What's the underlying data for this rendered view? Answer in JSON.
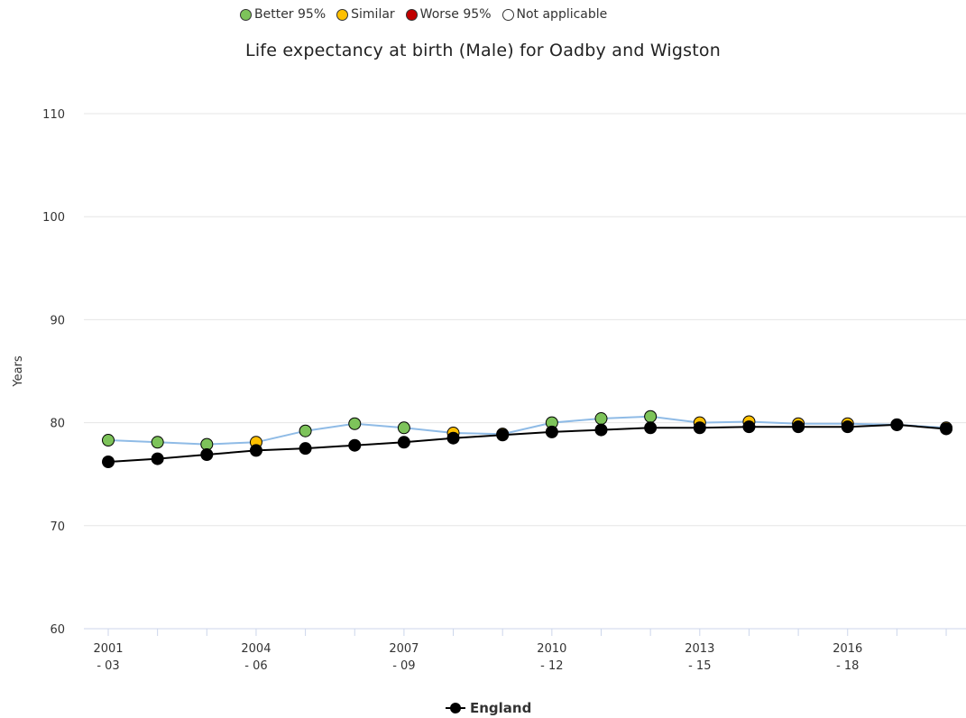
{
  "legend_top": [
    {
      "label": "Better 95%",
      "color": "#7dc35a"
    },
    {
      "label": "Similar",
      "color": "#ffc000"
    },
    {
      "label": "Worse 95%",
      "color": "#c00000"
    },
    {
      "label": "Not applicable",
      "color": "#ffffff"
    }
  ],
  "chart_data": {
    "type": "line",
    "title": "Life expectancy at birth (Male) for Oadby and Wigston",
    "ylabel": "Years",
    "xlabel": "",
    "ylim": [
      60,
      110
    ],
    "yticks": [
      60,
      70,
      80,
      90,
      100,
      110
    ],
    "grid": true,
    "x": [
      "2001 - 03",
      "2002 - 04",
      "2003 - 05",
      "2004 - 06",
      "2005 - 07",
      "2006 - 08",
      "2007 - 09",
      "2008 - 10",
      "2009 - 11",
      "2010 - 12",
      "2011 - 13",
      "2012 - 14",
      "2013 - 15",
      "2014 - 16",
      "2015 - 17",
      "2016 - 18",
      "2017 - 19",
      "2018 - 20"
    ],
    "x_tick_labels": [
      {
        "index": 0,
        "line1": "2001",
        "line2": "- 03"
      },
      {
        "index": 3,
        "line1": "2004",
        "line2": "- 06"
      },
      {
        "index": 6,
        "line1": "2007",
        "line2": "- 09"
      },
      {
        "index": 9,
        "line1": "2010",
        "line2": "- 12"
      },
      {
        "index": 12,
        "line1": "2013",
        "line2": "- 15"
      },
      {
        "index": 15,
        "line1": "2016",
        "line2": "- 18"
      }
    ],
    "series": [
      {
        "line_color": "#8fbbe6",
        "values": [
          78.3,
          78.1,
          77.9,
          78.1,
          79.2,
          79.9,
          79.5,
          79.0,
          78.9,
          80.0,
          80.4,
          80.6,
          80.0,
          80.1,
          79.9,
          79.9,
          79.8,
          79.5
        ],
        "point_colors": [
          "#7dc35a",
          "#7dc35a",
          "#7dc35a",
          "#ffc000",
          "#7dc35a",
          "#7dc35a",
          "#7dc35a",
          "#ffc000",
          "#ffc000",
          "#7dc35a",
          "#7dc35a",
          "#7dc35a",
          "#ffc000",
          "#ffc000",
          "#ffc000",
          "#ffc000",
          "#ffc000",
          "#ffc000"
        ]
      },
      {
        "name": "England",
        "line_color": "#000000",
        "values": [
          76.2,
          76.5,
          76.9,
          77.3,
          77.5,
          77.8,
          78.1,
          78.5,
          78.8,
          79.1,
          79.3,
          79.5,
          79.5,
          79.6,
          79.6,
          79.6,
          79.8,
          79.4
        ],
        "point_colors": [
          "#000000"
        ]
      }
    ]
  }
}
